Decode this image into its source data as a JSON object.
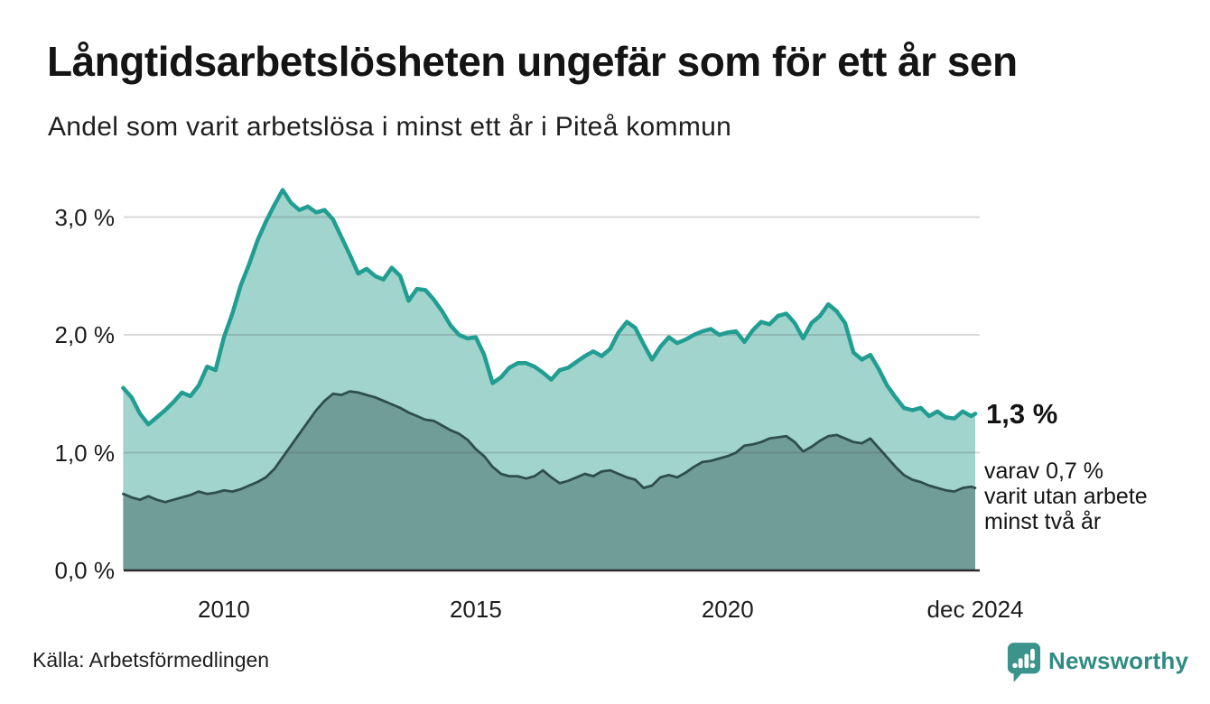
{
  "header": {
    "title": "Långtidsarbetslösheten ungefär som för ett år sen",
    "subtitle": "Andel som varit arbetslösa i minst ett år i Piteå kommun"
  },
  "annotation": {
    "value_label": "1,3 %",
    "detail_lines": [
      "varav 0,7 %",
      "varit utan arbete",
      "minst två år"
    ]
  },
  "source": {
    "label": "Källa: Arbetsförmedlingen"
  },
  "branding": {
    "name": "Newsworthy",
    "icon": "newsworthy-bubble-chart-icon",
    "text_color": "#2f8b83",
    "icon_color": "#3a948c"
  },
  "colors": {
    "background": "#ffffff",
    "total_line": "#219e91",
    "total_fill": "#a0d4cd",
    "two_year_line": "#2f4f4c",
    "two_year_fill": "#719d98",
    "gridline": "#dedede",
    "axis": "#2b2b2b",
    "text": "#141414"
  },
  "chart_data": {
    "type": "area",
    "title": "Långtidsarbetslösheten ungefär som för ett år sen",
    "subtitle": "Andel som varit arbetslösa i minst ett år i Piteå kommun",
    "xlabel": "",
    "ylabel": "",
    "x_unit": "year",
    "y_unit": "%",
    "x_start": 2008.0,
    "x_step_years": 0.166667,
    "x_end": 2024.917,
    "xlim": [
      2008.0,
      2025.0
    ],
    "ylim": [
      0,
      3.4
    ],
    "grid": "horizontal",
    "legend": "none",
    "y_ticks": [
      {
        "label": "0,0 %",
        "value": 0
      },
      {
        "label": "1,0 %",
        "value": 1
      },
      {
        "label": "2,0 %",
        "value": 2
      },
      {
        "label": "3,0 %",
        "value": 3
      }
    ],
    "x_ticks": [
      {
        "label": "2010",
        "year": 2010.0
      },
      {
        "label": "2015",
        "year": 2015.0
      },
      {
        "label": "2020",
        "year": 2020.0
      },
      {
        "label": "dec 2024",
        "year": 2024.917
      }
    ],
    "latest": {
      "total": "1,3 %",
      "two_year": "0,7 %"
    },
    "series": [
      {
        "name": "Arbetslösa minst ett år (andel, %)",
        "color": "#219e91",
        "fill": "#a0d4cd",
        "values": [
          1.55,
          1.47,
          1.33,
          1.24,
          1.3,
          1.36,
          1.43,
          1.51,
          1.48,
          1.57,
          1.73,
          1.7,
          1.98,
          2.18,
          2.42,
          2.6,
          2.8,
          2.96,
          3.1,
          3.23,
          3.12,
          3.06,
          3.09,
          3.04,
          3.06,
          2.98,
          2.83,
          2.68,
          2.52,
          2.56,
          2.5,
          2.47,
          2.57,
          2.5,
          2.29,
          2.39,
          2.38,
          2.3,
          2.2,
          2.08,
          2.0,
          1.97,
          1.98,
          1.83,
          1.59,
          1.64,
          1.72,
          1.76,
          1.76,
          1.73,
          1.68,
          1.62,
          1.7,
          1.72,
          1.77,
          1.82,
          1.86,
          1.82,
          1.88,
          2.02,
          2.11,
          2.06,
          1.92,
          1.79,
          1.9,
          1.98,
          1.93,
          1.96,
          2.0,
          2.03,
          2.05,
          2.0,
          2.02,
          2.03,
          1.94,
          2.04,
          2.11,
          2.09,
          2.16,
          2.18,
          2.1,
          1.97,
          2.1,
          2.16,
          2.26,
          2.2,
          2.1,
          1.85,
          1.79,
          1.83,
          1.71,
          1.57,
          1.47,
          1.38,
          1.36,
          1.38,
          1.31,
          1.35,
          1.3,
          1.29,
          1.35,
          1.31,
          1.33
        ]
      },
      {
        "name": "Varav utan arbete minst två år (andel, %)",
        "color": "#2f4f4c",
        "fill": "#719d98",
        "values": [
          0.65,
          0.62,
          0.6,
          0.63,
          0.6,
          0.58,
          0.6,
          0.62,
          0.64,
          0.67,
          0.65,
          0.66,
          0.68,
          0.67,
          0.69,
          0.72,
          0.75,
          0.79,
          0.86,
          0.96,
          1.06,
          1.16,
          1.26,
          1.36,
          1.44,
          1.5,
          1.49,
          1.52,
          1.51,
          1.49,
          1.47,
          1.44,
          1.41,
          1.38,
          1.34,
          1.31,
          1.28,
          1.27,
          1.23,
          1.19,
          1.16,
          1.11,
          1.03,
          0.97,
          0.88,
          0.82,
          0.8,
          0.8,
          0.78,
          0.8,
          0.85,
          0.79,
          0.74,
          0.76,
          0.79,
          0.82,
          0.8,
          0.84,
          0.85,
          0.82,
          0.79,
          0.77,
          0.7,
          0.72,
          0.79,
          0.81,
          0.79,
          0.83,
          0.88,
          0.92,
          0.93,
          0.95,
          0.97,
          1.0,
          1.06,
          1.07,
          1.09,
          1.12,
          1.13,
          1.14,
          1.09,
          1.01,
          1.05,
          1.1,
          1.14,
          1.15,
          1.12,
          1.09,
          1.08,
          1.12,
          1.04,
          0.96,
          0.88,
          0.81,
          0.77,
          0.75,
          0.72,
          0.7,
          0.68,
          0.67,
          0.7,
          0.71,
          0.7
        ]
      }
    ]
  }
}
